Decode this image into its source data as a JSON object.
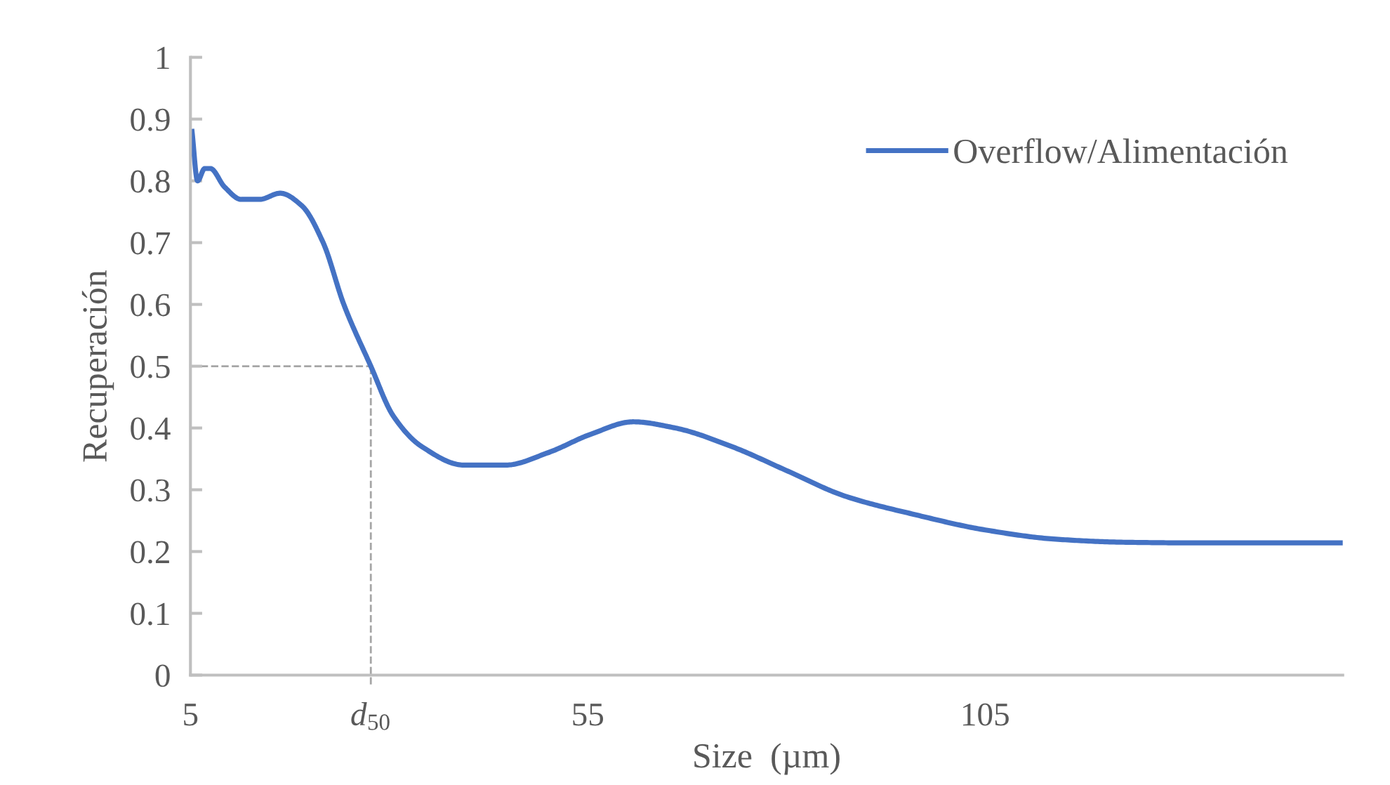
{
  "chart_data": {
    "type": "line",
    "xlabel": "Size  (µm)",
    "ylabel": "Recuperación",
    "x": [
      5.2,
      5.9,
      6.8,
      7.5,
      9.3,
      11.4,
      13.7,
      16.3,
      19,
      21.7,
      24.3,
      27.7,
      30.5,
      34.1,
      39.4,
      44.7,
      50,
      55.4,
      60.7,
      66,
      73.1,
      80.2,
      87.3,
      96.1,
      105,
      113.9,
      122.7,
      131.6,
      140.5,
      150
    ],
    "series": [
      {
        "name": "Overflow/Alimentación",
        "color": "#4472c4",
        "values": [
          0.88,
          0.8,
          0.82,
          0.82,
          0.79,
          0.77,
          0.77,
          0.78,
          0.76,
          0.7,
          0.6,
          0.5,
          0.42,
          0.37,
          0.34,
          0.34,
          0.36,
          0.39,
          0.41,
          0.4,
          0.37,
          0.33,
          0.29,
          0.26,
          0.235,
          0.22,
          0.215,
          0.214,
          0.214,
          0.214
        ]
      }
    ],
    "xlim": [
      5,
      150
    ],
    "xticks": [
      5,
      55,
      105
    ],
    "ylim": [
      0,
      1
    ],
    "yticks": [
      0,
      0.1,
      0.2,
      0.3,
      0.4,
      0.5,
      0.6,
      0.7,
      0.8,
      0.9,
      1
    ],
    "ref_lines": [
      {
        "axis": "y",
        "value": 0.5,
        "color": "#a6a6a6",
        "line_style": "dashed"
      },
      {
        "axis": "x",
        "value": 27.7,
        "label": "d$_{50}$",
        "color": "#a6a6a6",
        "line_style": "dashed"
      }
    ],
    "legend": "top right",
    "grid": false,
    "marker": "none",
    "line_style": "solid"
  }
}
